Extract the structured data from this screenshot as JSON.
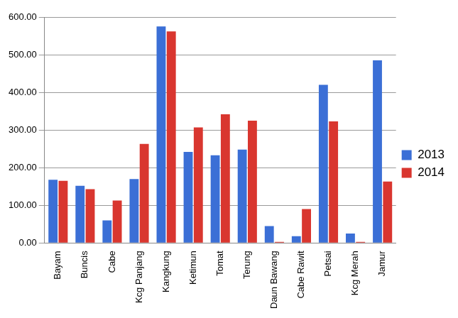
{
  "chart_data": {
    "type": "bar",
    "categories": [
      "Bayam",
      "Buncis",
      "Cabe",
      "Kcg Panjang",
      "Kangkung",
      "Ketimun",
      "Tomat",
      "Terung",
      "Daun Bawang",
      "Cabe Rawit",
      "Petsai",
      "Kcg Merah",
      "Jamur"
    ],
    "series": [
      {
        "name": "2013",
        "color": "#3b6fd6",
        "values": [
          168,
          152,
          60,
          170,
          575,
          242,
          233,
          248,
          45,
          18,
          420,
          25,
          485
        ]
      },
      {
        "name": "2014",
        "color": "#d9362f",
        "values": [
          165,
          143,
          113,
          263,
          562,
          307,
          342,
          325,
          3,
          90,
          323,
          3,
          163
        ]
      }
    ],
    "ylim": [
      0,
      600
    ],
    "yticks": [
      {
        "value": 0,
        "label": "0.00"
      },
      {
        "value": 100,
        "label": "100.00"
      },
      {
        "value": 200,
        "label": "200.00"
      },
      {
        "value": 300,
        "label": "300.00"
      },
      {
        "value": 400,
        "label": "400.00"
      },
      {
        "value": 500,
        "label": "500.00"
      },
      {
        "value": 600,
        "label": "600.00"
      }
    ],
    "grid": true,
    "legend": "right"
  }
}
